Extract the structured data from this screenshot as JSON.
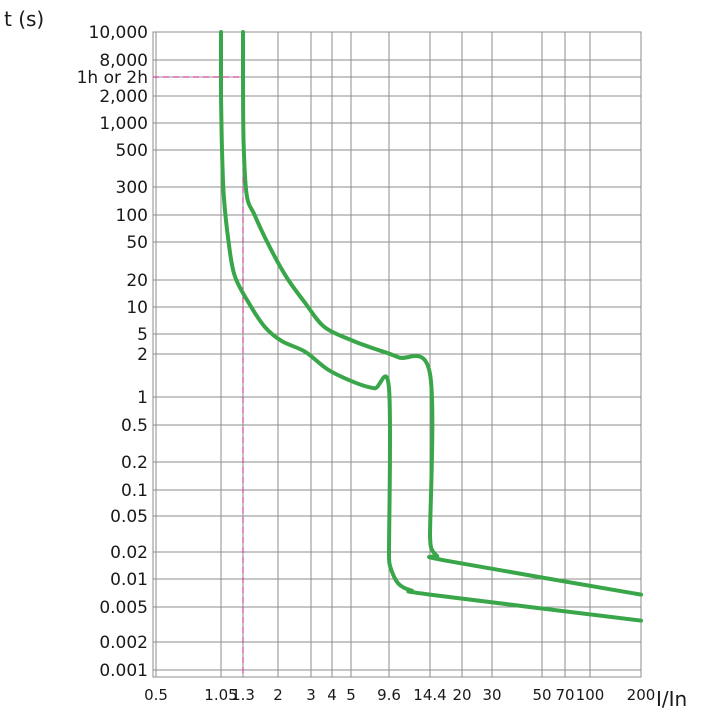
{
  "chart_data": {
    "type": "line",
    "xlabel": "I/In",
    "ylabel": "t (s)",
    "x_ticks": [
      {
        "value": 0.5,
        "label": "0.5"
      },
      {
        "value": 1.05,
        "label": "1.05"
      },
      {
        "value": 1.3,
        "label": "1.3"
      },
      {
        "value": 2,
        "label": "2"
      },
      {
        "value": 3,
        "label": "3"
      },
      {
        "value": 4,
        "label": "4"
      },
      {
        "value": 5,
        "label": "5"
      },
      {
        "value": 9.6,
        "label": "9.6"
      },
      {
        "value": 14.4,
        "label": "14.4"
      },
      {
        "value": 20,
        "label": "20"
      },
      {
        "value": 30,
        "label": "30"
      },
      {
        "value": 50,
        "label": "50"
      },
      {
        "value": 70,
        "label": "70"
      },
      {
        "value": 100,
        "label": "100"
      },
      {
        "value": 200,
        "label": "200"
      }
    ],
    "y_ticks": [
      {
        "value": 0.001,
        "label": "0.001"
      },
      {
        "value": 0.002,
        "label": "0.002"
      },
      {
        "value": 0.005,
        "label": "0.005"
      },
      {
        "value": 0.01,
        "label": "0.01"
      },
      {
        "value": 0.02,
        "label": "0.02"
      },
      {
        "value": 0.05,
        "label": "0.05"
      },
      {
        "value": 0.1,
        "label": "0.1"
      },
      {
        "value": 0.2,
        "label": "0.2"
      },
      {
        "value": 0.5,
        "label": "0.5"
      },
      {
        "value": 1,
        "label": "1"
      },
      {
        "value": 2,
        "label": "2"
      },
      {
        "value": 5,
        "label": "5"
      },
      {
        "value": 10,
        "label": "10"
      },
      {
        "value": 20,
        "label": "20"
      },
      {
        "value": 50,
        "label": "50"
      },
      {
        "value": 100,
        "label": "100"
      },
      {
        "value": 300,
        "label": "300"
      },
      {
        "value": 500,
        "label": "500"
      },
      {
        "value": 1000,
        "label": "1,000"
      },
      {
        "value": 2000,
        "label": "2,000"
      },
      {
        "value": 3600,
        "label": "1h or 2h"
      },
      {
        "value": 8000,
        "label": "8,000"
      },
      {
        "value": 10000,
        "label": "10,000"
      }
    ],
    "grid": true,
    "series": [
      {
        "color": "#3aa64a",
        "points": [
          [
            1.05,
            10000
          ],
          [
            1.05,
            2000
          ],
          [
            1.06,
            500
          ],
          [
            1.08,
            200
          ],
          [
            1.13,
            50
          ],
          [
            1.2,
            22
          ],
          [
            1.4,
            11
          ],
          [
            1.7,
            6
          ],
          [
            2.1,
            3.6
          ],
          [
            2.8,
            2.2
          ],
          [
            3.8,
            1.55
          ],
          [
            5.5,
            1.25
          ],
          [
            7.5,
            1.15
          ],
          [
            9.6,
            1.15
          ],
          [
            9.6,
            0.02
          ],
          [
            9.7,
            0.014
          ],
          [
            10.5,
            0.009
          ],
          [
            12,
            0.0075
          ],
          [
            14.4,
            0.0068
          ],
          [
            200,
            0.0035
          ]
        ]
      },
      {
        "color": "#3aa64a",
        "points": [
          [
            1.3,
            10000
          ],
          [
            1.3,
            3600
          ],
          [
            1.31,
            600
          ],
          [
            1.36,
            220
          ],
          [
            1.5,
            100
          ],
          [
            1.75,
            50
          ],
          [
            2.2,
            22
          ],
          [
            2.8,
            11
          ],
          [
            3.6,
            6
          ],
          [
            5,
            3.8
          ],
          [
            7,
            2.7
          ],
          [
            10.5,
            1.9
          ],
          [
            14.4,
            1.45
          ],
          [
            14.4,
            0.03
          ],
          [
            14.6,
            0.022
          ],
          [
            15.5,
            0.018
          ],
          [
            17,
            0.016
          ],
          [
            200,
            0.0068
          ]
        ]
      }
    ],
    "guides": {
      "color": "#d63fa0",
      "vertical_x": 1.3,
      "horizontal_y": 3600
    }
  }
}
